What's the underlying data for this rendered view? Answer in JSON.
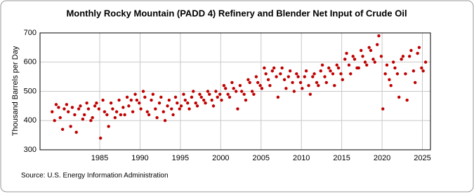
{
  "chart_data": {
    "type": "scatter",
    "title": "Monthly Rocky Mountain (PADD 4) Refinery and Blender Net Input of Crude Oil",
    "y_label": "Thousand Barrels per Day",
    "source": "Source: U.S. Energy Information Administration",
    "color": "#c00000",
    "grid": true,
    "xlim": [
      1977.6,
      2026
    ],
    "xticks": [
      1985,
      1990,
      1995,
      2000,
      2005,
      2010,
      2015,
      2020,
      2025
    ],
    "ylim": [
      300,
      700
    ],
    "yticks": [
      300,
      400,
      500,
      600,
      700
    ],
    "x": [
      1979.1,
      1979.4,
      1979.6,
      1979.9,
      1980.1,
      1980.4,
      1980.6,
      1980.9,
      1981.1,
      1981.4,
      1981.6,
      1981.9,
      1982.1,
      1982.4,
      1982.6,
      1982.9,
      1983.1,
      1983.4,
      1983.6,
      1983.9,
      1984.1,
      1984.4,
      1984.6,
      1984.9,
      1985.1,
      1985.4,
      1985.6,
      1985.9,
      1986.1,
      1986.4,
      1986.6,
      1986.9,
      1987.1,
      1987.4,
      1987.6,
      1987.9,
      1988.1,
      1988.4,
      1988.6,
      1988.9,
      1989.1,
      1989.4,
      1989.6,
      1989.9,
      1990.1,
      1990.4,
      1990.6,
      1990.9,
      1991.1,
      1991.4,
      1991.6,
      1991.9,
      1992.1,
      1992.4,
      1992.6,
      1992.9,
      1993.1,
      1993.4,
      1993.6,
      1993.9,
      1994.1,
      1994.4,
      1994.6,
      1994.9,
      1995.1,
      1995.4,
      1995.6,
      1995.9,
      1996.1,
      1996.4,
      1996.6,
      1996.9,
      1997.1,
      1997.4,
      1997.6,
      1997.9,
      1998.1,
      1998.4,
      1998.6,
      1998.9,
      1999.1,
      1999.4,
      1999.6,
      1999.9,
      2000.1,
      2000.4,
      2000.6,
      2000.9,
      2001.1,
      2001.4,
      2001.6,
      2001.9,
      2002.1,
      2002.4,
      2002.6,
      2002.9,
      2003.1,
      2003.4,
      2003.6,
      2003.9,
      2004.1,
      2004.4,
      2004.6,
      2004.9,
      2005.1,
      2005.4,
      2005.6,
      2005.9,
      2006.1,
      2006.4,
      2006.6,
      2006.9,
      2007.1,
      2007.4,
      2007.6,
      2007.9,
      2008.1,
      2008.4,
      2008.6,
      2008.9,
      2009.1,
      2009.4,
      2009.6,
      2009.9,
      2010.1,
      2010.4,
      2010.6,
      2010.9,
      2011.1,
      2011.4,
      2011.6,
      2011.9,
      2012.1,
      2012.4,
      2012.6,
      2012.9,
      2013.1,
      2013.4,
      2013.6,
      2013.9,
      2014.1,
      2014.4,
      2014.6,
      2014.9,
      2015.1,
      2015.4,
      2015.6,
      2015.9,
      2016.1,
      2016.4,
      2016.6,
      2016.9,
      2017.1,
      2017.4,
      2017.6,
      2017.9,
      2018.1,
      2018.4,
      2018.6,
      2018.9,
      2019.1,
      2019.4,
      2019.6,
      2019.9,
      2020.1,
      2020.4,
      2020.6,
      2020.9,
      2021.1,
      2021.4,
      2021.6,
      2021.9,
      2022.1,
      2022.4,
      2022.6,
      2022.9,
      2023.1,
      2023.4,
      2023.6,
      2023.9,
      2024.1,
      2024.4,
      2024.6,
      2024.9,
      2025.1,
      2025.4
    ],
    "values": [
      430,
      400,
      455,
      445,
      410,
      370,
      440,
      455,
      430,
      380,
      445,
      420,
      360,
      440,
      450,
      405,
      420,
      460,
      440,
      400,
      410,
      450,
      460,
      440,
      340,
      470,
      430,
      420,
      380,
      460,
      440,
      410,
      430,
      470,
      420,
      445,
      420,
      480,
      450,
      470,
      430,
      490,
      470,
      460,
      440,
      500,
      480,
      430,
      420,
      470,
      490,
      440,
      410,
      460,
      480,
      430,
      400,
      450,
      470,
      440,
      420,
      480,
      460,
      440,
      450,
      490,
      470,
      460,
      440,
      480,
      500,
      460,
      450,
      490,
      480,
      470,
      460,
      500,
      490,
      470,
      450,
      500,
      480,
      490,
      470,
      520,
      510,
      490,
      480,
      530,
      510,
      500,
      440,
      520,
      500,
      490,
      470,
      540,
      530,
      500,
      490,
      550,
      530,
      520,
      510,
      580,
      560,
      540,
      520,
      570,
      580,
      550,
      480,
      560,
      580,
      540,
      510,
      550,
      570,
      530,
      500,
      560,
      550,
      530,
      510,
      550,
      570,
      520,
      490,
      550,
      560,
      530,
      520,
      570,
      590,
      550,
      530,
      580,
      570,
      560,
      520,
      590,
      580,
      560,
      540,
      610,
      630,
      590,
      560,
      620,
      610,
      580,
      580,
      640,
      620,
      600,
      590,
      650,
      640,
      610,
      600,
      660,
      690,
      620,
      440,
      560,
      590,
      540,
      520,
      600,
      580,
      560,
      480,
      610,
      620,
      560,
      470,
      620,
      640,
      570,
      530,
      630,
      650,
      580,
      570,
      600
    ]
  }
}
